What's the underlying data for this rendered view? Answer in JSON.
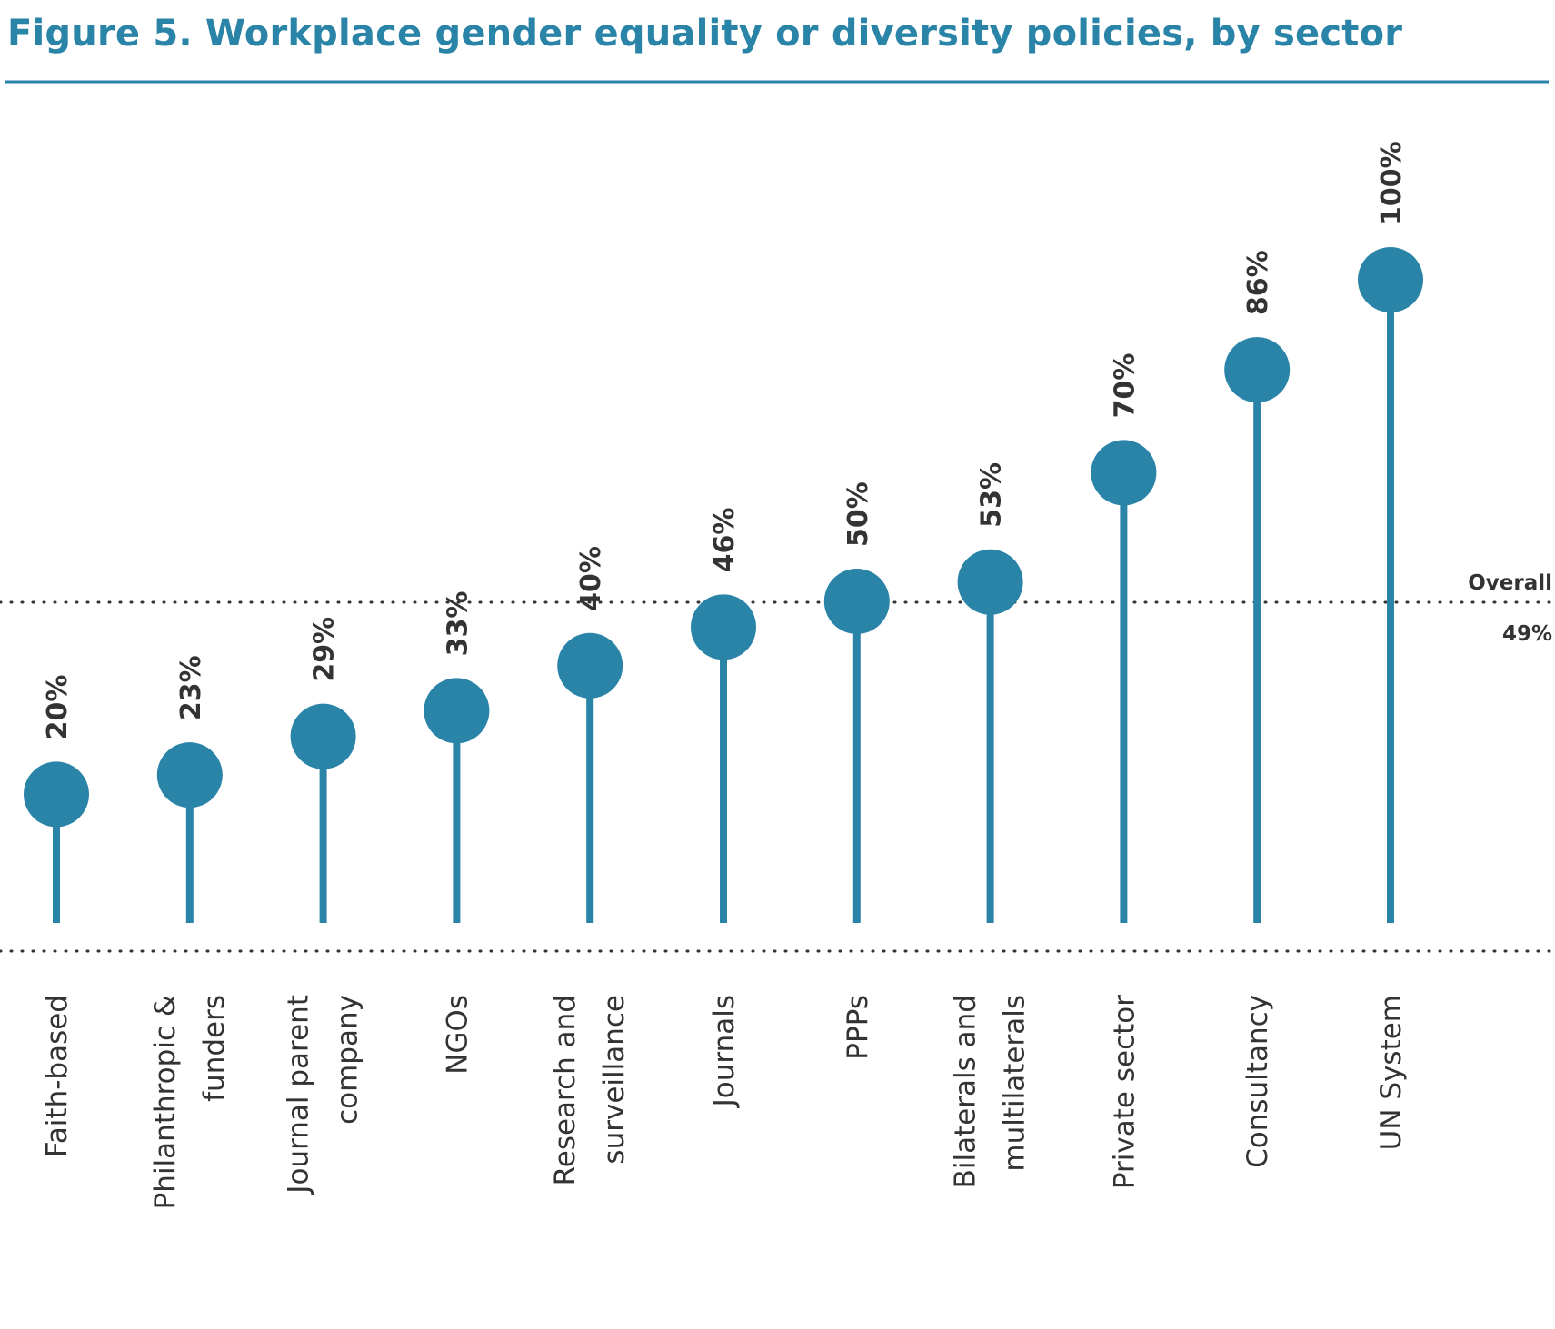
{
  "chart_data": {
    "type": "lollipop",
    "title": "Figure 5. Workplace gender equality or diversity policies, by sector",
    "categories": [
      [
        "Faith-based"
      ],
      [
        "Philanthropic &",
        "funders"
      ],
      [
        "Journal parent",
        "company"
      ],
      [
        "NGOs"
      ],
      [
        "Research and",
        "surveillance"
      ],
      [
        "Journals"
      ],
      [
        "PPPs"
      ],
      [
        "Bilaterals and",
        "multilaterals"
      ],
      [
        "Private sector"
      ],
      [
        "Consultancy"
      ],
      [
        "UN System"
      ]
    ],
    "values": [
      20,
      23,
      29,
      33,
      40,
      46,
      50,
      53,
      70,
      86,
      100
    ],
    "value_labels": [
      "20%",
      "23%",
      "29%",
      "33%",
      "40%",
      "46%",
      "50%",
      "53%",
      "70%",
      "86%",
      "100%"
    ],
    "reference_line": {
      "label": "Overall",
      "value_label": "49%",
      "value": 49
    },
    "ylim": [
      0,
      100
    ],
    "grid": false,
    "color": "#2a84a8",
    "title_color": "#2a84a8",
    "text_color": "#333333"
  }
}
